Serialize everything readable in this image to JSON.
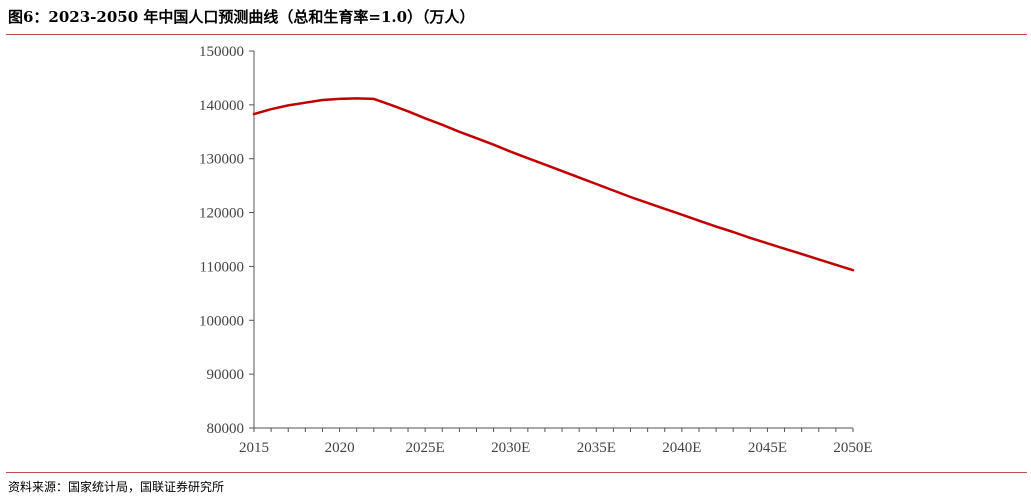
{
  "header": {
    "title": "图6：2023-2050 年中国人口预测曲线（总和生育率=1.0）（万人）"
  },
  "footer": {
    "source": "资料来源：国家统计局，国联证券研究所"
  },
  "colors": {
    "line": "#c00000",
    "rule": "#c0504d",
    "axis": "#555555"
  },
  "chart_data": {
    "type": "line",
    "title": "",
    "xlabel": "",
    "ylabel": "",
    "categories": [
      "2015",
      "2016",
      "2017",
      "2018",
      "2019",
      "2020",
      "2021",
      "2022",
      "2023E",
      "2024E",
      "2025E",
      "2026E",
      "2027E",
      "2028E",
      "2029E",
      "2030E",
      "2031E",
      "2032E",
      "2033E",
      "2034E",
      "2035E",
      "2036E",
      "2037E",
      "2038E",
      "2039E",
      "2040E",
      "2041E",
      "2042E",
      "2043E",
      "2044E",
      "2045E",
      "2046E",
      "2047E",
      "2048E",
      "2049E",
      "2050E"
    ],
    "x_tick_labels": [
      "2015",
      "",
      "",
      "",
      "",
      "2020",
      "",
      "",
      "",
      "",
      "2025E",
      "",
      "",
      "",
      "",
      "2030E",
      "",
      "",
      "",
      "",
      "2035E",
      "",
      "",
      "",
      "",
      "2040E",
      "",
      "",
      "",
      "",
      "2045E",
      "",
      "",
      "",
      "",
      "2050E"
    ],
    "series": [
      {
        "values": [
          138300,
          139200,
          139900,
          140400,
          140900,
          141100,
          141200,
          141100,
          140000,
          138800,
          137500,
          136300,
          135000,
          133800,
          132600,
          131300,
          130100,
          128900,
          127700,
          126500,
          125300,
          124100,
          122900,
          121800,
          120700,
          119600,
          118500,
          117400,
          116400,
          115300,
          114300,
          113300,
          112300,
          111300,
          110300,
          109300
        ]
      }
    ],
    "ylim": [
      80000,
      150000
    ],
    "y_ticks": [
      "80000",
      "90000",
      "100000",
      "110000",
      "120000",
      "130000",
      "140000",
      "150000"
    ],
    "grid": false,
    "legend": "none"
  }
}
